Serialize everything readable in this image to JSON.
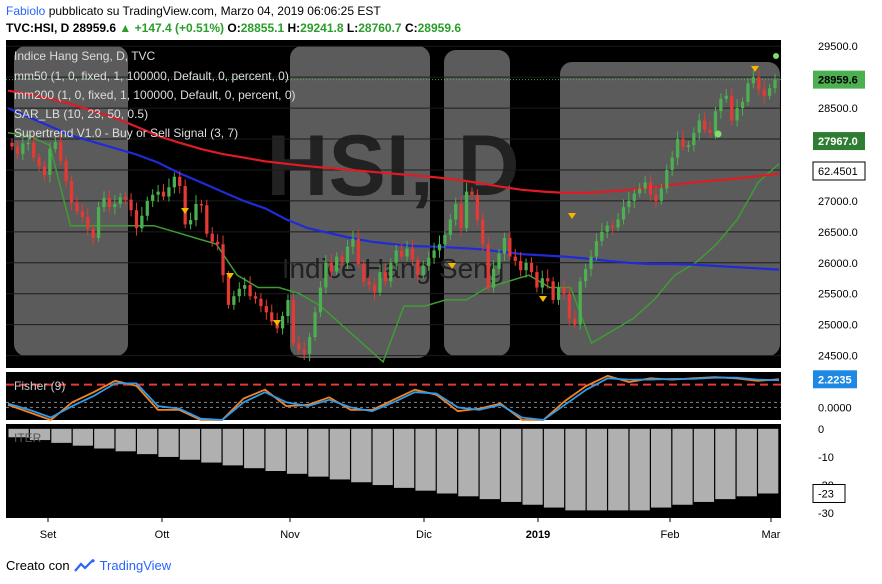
{
  "header": {
    "author": "Fabiolo",
    "published": "pubblicato su TradingView.com, Marzo 04, 2019 06:06:25 EST",
    "symbol": "TVC:HSI, D",
    "last": "28959.6",
    "change": "+147.4 (+0.51%)",
    "o_label": "O:",
    "o": "28855.1",
    "h_label": "H:",
    "h": "29241.8",
    "l_label": "L:",
    "l": "28760.7",
    "c_label": "C:",
    "c": "28959.6"
  },
  "legend": {
    "title": "Indice Hang Seng, D, TVC",
    "lines": [
      "mm50 (1, 0, fixed, 1, 100000, Default, 0, percent, 0)",
      "mm200 (1, 0, fixed, 1, 100000, Default, 0, percent, 0)",
      "SAR_LB (10, 23, 50, 0.5)",
      "Supertrend V1.0 - Buy or Sell Signal (3, 7)"
    ]
  },
  "watermark": {
    "big": "HSI, D",
    "small": "Indice Hang Seng"
  },
  "colors": {
    "up": "#4caf50",
    "down": "#e53935",
    "mm50": "#1f2bd6",
    "mm200": "#e01b24",
    "supertrend": "#3f9c35",
    "sar": "#c2185b",
    "fisher1": "#f58220",
    "fisher2": "#2f9bea",
    "panel_bg": "#000000",
    "band": "#6b6b6b"
  },
  "chart_data": [
    {
      "type": "candlestick",
      "title": "Indice Hang Seng, D, TVC",
      "x_labels": [
        "Set",
        "Ott",
        "Nov",
        "Dic",
        "2019",
        "Feb",
        "Mar"
      ],
      "ylim": [
        24300,
        29600
      ],
      "y_ticks": [
        "29500.0",
        "29000.0",
        "28500.0",
        "28000.0",
        "27500.0",
        "27000.0",
        "26500.0",
        "26000.0",
        "25500.0",
        "25000.0",
        "24500.0"
      ],
      "price_labels": {
        "last": "28959.6",
        "supertrend": "27967.0",
        "left_value": "62.4501"
      },
      "close": [
        27880,
        27760,
        27930,
        27940,
        27700,
        27560,
        27420,
        27840,
        27950,
        27650,
        27320,
        26970,
        26830,
        26740,
        26550,
        26400,
        26900,
        27050,
        26900,
        26950,
        27060,
        27020,
        26850,
        26560,
        26760,
        27000,
        27100,
        27150,
        27070,
        27220,
        27390,
        27240,
        26620,
        26690,
        26950,
        26930,
        26470,
        26340,
        26300,
        25800,
        25320,
        25460,
        25580,
        25640,
        25460,
        25420,
        25300,
        25200,
        25050,
        24940,
        25140,
        25400,
        24700,
        24600,
        24530,
        24800,
        25200,
        25600,
        26000,
        25860,
        26100,
        26000,
        26260,
        26390,
        25980,
        25700,
        25650,
        25520,
        25850,
        25700,
        26000,
        26200,
        26100,
        26230,
        26050,
        25800,
        25950,
        26080,
        26200,
        26300,
        26450,
        26700,
        26950,
        26560,
        27150,
        27100,
        26700,
        26300,
        25600,
        25900,
        26150,
        26400,
        26100,
        26030,
        25880,
        26000,
        25850,
        25600,
        25750,
        25700,
        25400,
        25600,
        25500,
        25100,
        25000,
        25700,
        25900,
        26100,
        26350,
        26500,
        26600,
        26570,
        26700,
        26900,
        27000,
        27120,
        27200,
        27300,
        27100,
        27000,
        27200,
        27500,
        27700,
        28000,
        27870,
        27900,
        28100,
        28300,
        28150,
        28100,
        28450,
        28650,
        28700,
        28300,
        28500,
        28600,
        28900,
        29000,
        28800,
        28700,
        28820,
        28959.6
      ],
      "mm50": [
        28500,
        28350,
        28200,
        28050,
        27950,
        27850,
        27750,
        27620,
        27450,
        27300,
        27150,
        27000,
        26880,
        26700,
        26560,
        26480,
        26400,
        26340,
        26300,
        26270,
        26260,
        26240,
        26220,
        26180,
        26140,
        26120,
        26100,
        26070,
        26030,
        26000,
        25980,
        25980,
        25970,
        25950,
        25930,
        25910,
        25890
      ],
      "mm200": [
        28780,
        28720,
        28650,
        28560,
        28450,
        28340,
        28200,
        28050,
        27940,
        27840,
        27760,
        27700,
        27640,
        27600,
        27560,
        27530,
        27500,
        27470,
        27440,
        27410,
        27380,
        27340,
        27290,
        27230,
        27180,
        27150,
        27130,
        27130,
        27150,
        27180,
        27220,
        27260,
        27300,
        27330,
        27360,
        27400,
        27440
      ],
      "supertrend": [
        28100,
        28050,
        27900,
        26600,
        26600,
        26600,
        26600,
        26600,
        26500,
        26400,
        26300,
        25800,
        25600,
        25600,
        25500,
        25300,
        25000,
        24700,
        24400,
        25300,
        25300,
        25400,
        25400,
        25600,
        25700,
        25800,
        25600,
        25600,
        24700,
        24900,
        25100,
        25400,
        25800,
        26000,
        26300,
        26700,
        27300,
        27600
      ]
    },
    {
      "type": "line",
      "title": "Fisher (9)",
      "ylim": [
        -1.0,
        2.8
      ],
      "y_ticks": [
        "0.0000"
      ],
      "last_label": "2.2235",
      "series": [
        {
          "name": "Fisher",
          "values": [
            0.2,
            -0.4,
            -1.0,
            0.4,
            1.2,
            2.1,
            1.7,
            -0.2,
            -0.2,
            -1.0,
            -1.0,
            0.7,
            1.4,
            0.1,
            0.2,
            0.8,
            -0.2,
            -0.2,
            0.6,
            1.4,
            1.0,
            -0.3,
            -0.1,
            0.3,
            -1.0,
            -1.0,
            0.5,
            1.7,
            2.5,
            2.0,
            2.3,
            2.2,
            2.3,
            2.4,
            2.3,
            2.1,
            2.2235
          ]
        },
        {
          "name": "Trigger",
          "values": [
            0.3,
            -0.2,
            -0.8,
            0.1,
            0.9,
            1.9,
            1.9,
            0.1,
            -0.1,
            -0.9,
            -1.0,
            0.4,
            1.2,
            0.4,
            0.1,
            0.6,
            0.0,
            -0.3,
            0.4,
            1.2,
            1.1,
            0.0,
            -0.2,
            0.2,
            -0.8,
            -1.0,
            0.2,
            1.4,
            2.3,
            2.2,
            2.2,
            2.25,
            2.25,
            2.35,
            2.35,
            2.2,
            2.15
          ]
        }
      ]
    },
    {
      "type": "bar",
      "title": "ITER",
      "ylim": [
        -31,
        1
      ],
      "y_ticks": [
        "0",
        "-10",
        "-20",
        "-30"
      ],
      "last_label": "-23",
      "values": [
        -3,
        -4,
        -5,
        -6,
        -7,
        -8,
        -9,
        -10,
        -11,
        -12,
        -13,
        -14,
        -15,
        -16,
        -17,
        -18,
        -19,
        -20,
        -21,
        -22,
        -23,
        -24,
        -25,
        -26,
        -27,
        -28,
        -29,
        -29,
        -29,
        -29,
        -28,
        -27,
        -26,
        -25,
        -24,
        -23
      ]
    }
  ],
  "footer": {
    "created_with": "Creato con",
    "brand": "TradingView"
  }
}
